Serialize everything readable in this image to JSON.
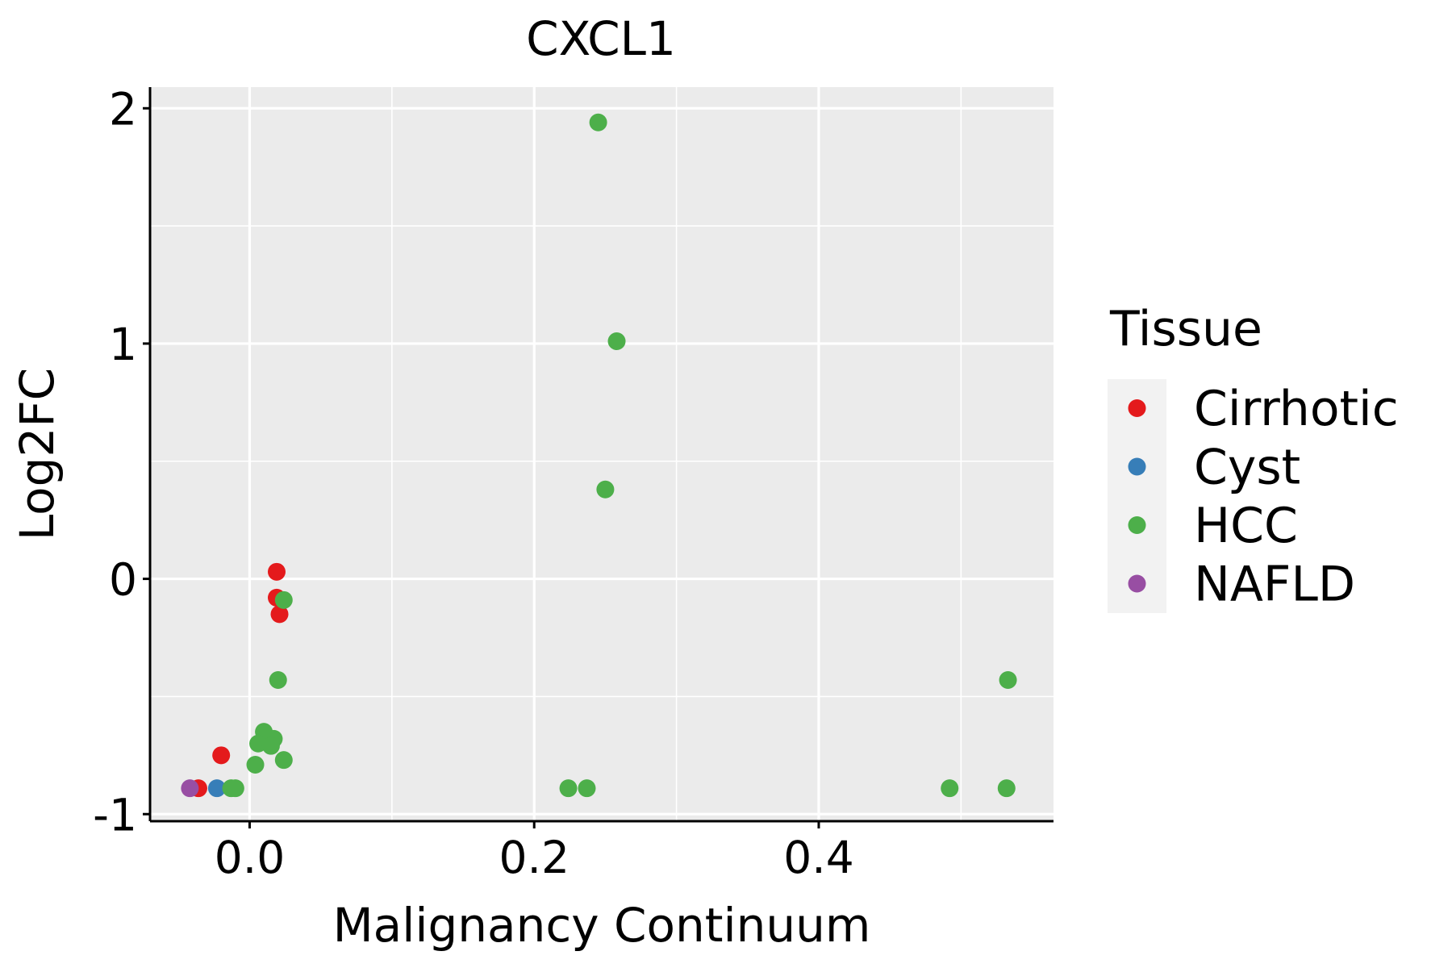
{
  "chart_data": {
    "type": "scatter",
    "title": "CXCL1",
    "xlabel": "Malignancy Continuum",
    "ylabel": "Log2FC",
    "xlim": [
      -0.07,
      0.565
    ],
    "ylim": [
      -1.03,
      2.09
    ],
    "x_ticks": [
      0.0,
      0.2,
      0.4
    ],
    "x_tick_labels": [
      "0.0",
      "0.2",
      "0.4"
    ],
    "x_minor_gridlines": [
      0.1,
      0.3,
      0.5
    ],
    "y_ticks": [
      -1,
      0,
      1,
      2
    ],
    "y_tick_labels": [
      "-1",
      "0",
      "1",
      "2"
    ],
    "y_minor_gridlines": [
      -0.5,
      0.5,
      1.5
    ],
    "grid": true,
    "panel_background": "#EBEBEB",
    "legend": {
      "title": "Tissue",
      "position": "right",
      "entries": [
        {
          "name": "Cirrhotic",
          "color": "#E41A1C"
        },
        {
          "name": "Cyst",
          "color": "#377EB8"
        },
        {
          "name": "HCC",
          "color": "#4DAF4A"
        },
        {
          "name": "NAFLD",
          "color": "#984EA3"
        }
      ]
    },
    "series": [
      {
        "name": "Cirrhotic",
        "color": "#E41A1C",
        "points": [
          {
            "x": 0.019,
            "y": 0.03
          },
          {
            "x": 0.019,
            "y": -0.08
          },
          {
            "x": 0.021,
            "y": -0.15
          },
          {
            "x": -0.02,
            "y": -0.75
          },
          {
            "x": -0.036,
            "y": -0.89
          }
        ]
      },
      {
        "name": "Cyst",
        "color": "#377EB8",
        "points": [
          {
            "x": -0.023,
            "y": -0.89
          }
        ]
      },
      {
        "name": "HCC",
        "color": "#4DAF4A",
        "points": [
          {
            "x": 0.245,
            "y": 1.94
          },
          {
            "x": 0.258,
            "y": 1.01
          },
          {
            "x": 0.25,
            "y": 0.38
          },
          {
            "x": 0.024,
            "y": -0.09
          },
          {
            "x": 0.02,
            "y": -0.43
          },
          {
            "x": 0.01,
            "y": -0.65
          },
          {
            "x": 0.017,
            "y": -0.68
          },
          {
            "x": 0.006,
            "y": -0.7
          },
          {
            "x": 0.015,
            "y": -0.71
          },
          {
            "x": 0.024,
            "y": -0.77
          },
          {
            "x": 0.004,
            "y": -0.79
          },
          {
            "x": -0.013,
            "y": -0.89
          },
          {
            "x": -0.01,
            "y": -0.89
          },
          {
            "x": 0.224,
            "y": -0.89
          },
          {
            "x": 0.237,
            "y": -0.89
          },
          {
            "x": 0.492,
            "y": -0.89
          },
          {
            "x": 0.532,
            "y": -0.89
          },
          {
            "x": 0.533,
            "y": -0.43
          }
        ]
      },
      {
        "name": "NAFLD",
        "color": "#984EA3",
        "points": [
          {
            "x": -0.042,
            "y": -0.89
          }
        ]
      }
    ]
  }
}
